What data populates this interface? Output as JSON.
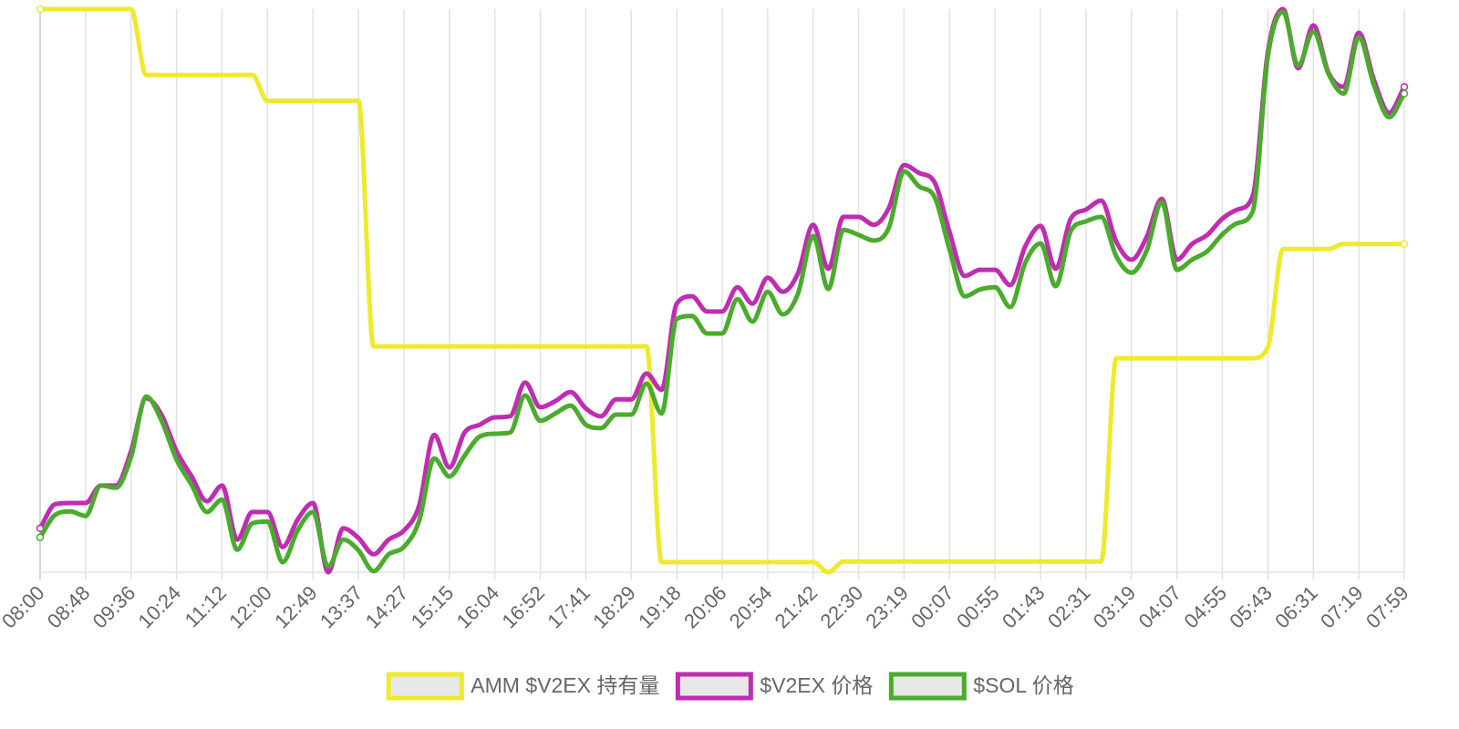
{
  "chart_data": {
    "type": "line",
    "categories": [
      "08:00",
      null,
      null,
      "08:48",
      null,
      null,
      "09:36",
      null,
      null,
      "10:24",
      null,
      null,
      "11:12",
      null,
      null,
      "12:00",
      null,
      null,
      "12:49",
      null,
      null,
      "13:37",
      null,
      null,
      "14:27",
      null,
      null,
      "15:15",
      null,
      null,
      "16:04",
      null,
      null,
      "16:52",
      null,
      null,
      "17:41",
      null,
      null,
      "18:29",
      null,
      null,
      "19:18",
      null,
      null,
      "20:06",
      null,
      null,
      "20:54",
      null,
      null,
      "21:42",
      null,
      null,
      "22:30",
      null,
      null,
      "23:19",
      null,
      null,
      "00:07",
      null,
      null,
      "00:55",
      null,
      null,
      "01:43",
      null,
      null,
      "02:31",
      null,
      null,
      "03:19",
      null,
      null,
      "04:07",
      null,
      null,
      "04:55",
      null,
      null,
      "05:43",
      null,
      null,
      "06:31",
      null,
      null,
      "07:19",
      null,
      null,
      "07:59"
    ],
    "ylim": [
      0,
      100
    ],
    "grid": true,
    "legend": "bottom",
    "series": [
      {
        "name": "AMM $V2EX 持有量",
        "color": "#eeea2c",
        "values": [
          100,
          100,
          100,
          100,
          100,
          100,
          100,
          88.3,
          88.3,
          88.3,
          88.3,
          88.3,
          88.3,
          88.3,
          88.3,
          83.7,
          83.7,
          83.7,
          83.7,
          83.7,
          83.7,
          83.7,
          40.1,
          40.1,
          40.1,
          40.1,
          40.1,
          40.1,
          40.1,
          40.1,
          40.1,
          40.1,
          40.1,
          40.1,
          40.1,
          40.1,
          40.1,
          40.1,
          40.1,
          40.1,
          40.1,
          1.8,
          1.8,
          1.8,
          1.8,
          1.8,
          1.8,
          1.8,
          1.8,
          1.8,
          1.8,
          1.8,
          0,
          1.9,
          1.9,
          1.9,
          1.9,
          1.9,
          1.9,
          1.9,
          1.9,
          1.9,
          1.9,
          1.9,
          1.9,
          1.9,
          1.9,
          1.9,
          1.9,
          1.9,
          1.9,
          38.0,
          38.0,
          38.0,
          38.0,
          38.0,
          38.0,
          38.0,
          38.0,
          38.0,
          38.0,
          40.0,
          57.4,
          57.4,
          57.4,
          57.4,
          58.3,
          58.3,
          58.3,
          58.3,
          58.3
        ]
      },
      {
        "name": "$V2EX 价格",
        "color": "#c02cb2",
        "values": [
          7.8,
          12.1,
          12.3,
          12.3,
          15.4,
          15.4,
          21.5,
          30.9,
          28.0,
          21.5,
          17.0,
          12.6,
          15.4,
          5.8,
          10.7,
          10.7,
          4.5,
          9.4,
          12.3,
          0,
          7.8,
          6.1,
          3.2,
          5.8,
          7.4,
          11.8,
          24.4,
          18.6,
          24.8,
          26.2,
          27.5,
          27.7,
          33.7,
          29.3,
          30.4,
          32.0,
          29.1,
          27.7,
          30.7,
          30.7,
          35.3,
          32.4,
          47.7,
          49.0,
          46.3,
          46.3,
          50.6,
          47.7,
          52.3,
          49.8,
          53.1,
          61.7,
          53.9,
          63.1,
          63.1,
          61.7,
          64.7,
          72.3,
          70.9,
          69.3,
          60.4,
          52.6,
          53.7,
          53.7,
          51.0,
          57.9,
          61.5,
          53.9,
          62.8,
          64.4,
          66.0,
          58.7,
          55.5,
          59.5,
          66.3,
          55.5,
          58.3,
          59.9,
          62.8,
          64.4,
          66.8,
          92.4,
          100,
          89.5,
          97.1,
          88.7,
          86.2,
          95.8,
          87.4,
          81.6,
          86.2
        ]
      },
      {
        "name": "$SOL 价格",
        "color": "#4aab2c",
        "values": [
          6.2,
          10.2,
          10.8,
          10.0,
          15.4,
          15.0,
          20.5,
          31.2,
          27.0,
          20.0,
          15.5,
          10.7,
          12.9,
          4.0,
          8.7,
          9.0,
          1.8,
          7.5,
          10.7,
          1.0,
          5.8,
          3.9,
          0.2,
          3.2,
          4.5,
          9.1,
          20.2,
          17.0,
          20.7,
          24.1,
          24.6,
          24.8,
          31.4,
          26.9,
          28.2,
          29.6,
          26.2,
          25.6,
          28.0,
          28.0,
          33.5,
          28.2,
          45.0,
          45.5,
          42.4,
          42.4,
          48.5,
          44.5,
          49.8,
          45.8,
          49.5,
          59.7,
          50.3,
          60.8,
          59.9,
          58.9,
          61.2,
          71.2,
          68.5,
          66.7,
          57.3,
          49.0,
          50.2,
          50.6,
          47.1,
          55.0,
          58.4,
          50.8,
          60.6,
          62.3,
          63.1,
          56.1,
          53.2,
          57.1,
          65.7,
          53.7,
          55.5,
          57.0,
          60.0,
          62.0,
          64.1,
          91.6,
          99.5,
          90.0,
          96.0,
          88.5,
          85.0,
          95.0,
          86.5,
          80.8,
          85.0
        ]
      }
    ]
  }
}
